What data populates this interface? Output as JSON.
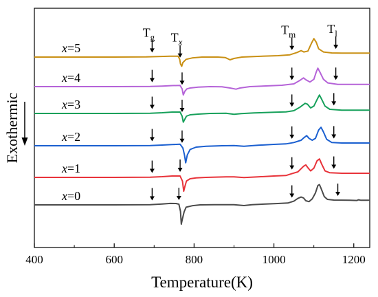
{
  "chart_data": {
    "type": "line",
    "xlabel": "Temperature(K)",
    "ylabel": "Exothermic",
    "xlim": [
      400,
      1240
    ],
    "x_ticks": [
      "400",
      "600",
      "800",
      "1000",
      "1200"
    ],
    "y_ticks_shown": false,
    "grid": false,
    "legend": "none; series labeled inline at left",
    "markers": [
      {
        "symbol": "T",
        "sub": "g",
        "italic_sub": false
      },
      {
        "symbol": "T",
        "sub": "x",
        "italic_sub": true
      },
      {
        "symbol": "T",
        "sub": "m",
        "italic_sub": false
      },
      {
        "symbol": "T",
        "sub": "l",
        "italic_sub": false
      }
    ],
    "series": [
      {
        "label_var": "x",
        "label_val": "=0",
        "color": "#4a4a4a",
        "arrows_at": [
          695,
          762,
          1045,
          1160
        ],
        "points": [
          [
            400,
            0
          ],
          [
            600,
            0
          ],
          [
            690,
            0.5
          ],
          [
            720,
            2
          ],
          [
            740,
            3.2
          ],
          [
            755,
            3
          ],
          [
            762,
            1.5
          ],
          [
            766,
            -14
          ],
          [
            768,
            -42
          ],
          [
            771,
            -30
          ],
          [
            775,
            -15
          ],
          [
            780,
            -5
          ],
          [
            795,
            -2
          ],
          [
            815,
            0
          ],
          [
            850,
            0.5
          ],
          [
            900,
            0.5
          ],
          [
            925,
            -1.5
          ],
          [
            945,
            0.5
          ],
          [
            980,
            2
          ],
          [
            1010,
            3
          ],
          [
            1035,
            4
          ],
          [
            1050,
            8
          ],
          [
            1060,
            14
          ],
          [
            1068,
            17
          ],
          [
            1074,
            15
          ],
          [
            1080,
            9
          ],
          [
            1088,
            7
          ],
          [
            1096,
            13
          ],
          [
            1104,
            26
          ],
          [
            1110,
            42
          ],
          [
            1114,
            44
          ],
          [
            1118,
            36
          ],
          [
            1126,
            18
          ],
          [
            1134,
            12
          ],
          [
            1150,
            10.5
          ],
          [
            1190,
            10
          ],
          [
            1208,
            9.5
          ],
          [
            1212,
            11
          ],
          [
            1218,
            10
          ],
          [
            1240,
            10
          ]
        ]
      },
      {
        "label_var": "x",
        "label_val": "=1",
        "color": "#e8333a",
        "arrows_at": [
          695,
          765,
          1045,
          1150
        ],
        "points": [
          [
            400,
            0
          ],
          [
            600,
            0
          ],
          [
            690,
            0.5
          ],
          [
            720,
            1.5
          ],
          [
            745,
            3
          ],
          [
            765,
            3
          ],
          [
            771,
            -8
          ],
          [
            774,
            -30
          ],
          [
            777,
            -20
          ],
          [
            781,
            -8
          ],
          [
            790,
            -3
          ],
          [
            805,
            -1
          ],
          [
            830,
            0
          ],
          [
            880,
            1
          ],
          [
            900,
            1
          ],
          [
            925,
            -0.5
          ],
          [
            960,
            1
          ],
          [
            1000,
            3
          ],
          [
            1030,
            4
          ],
          [
            1045,
            8
          ],
          [
            1060,
            12
          ],
          [
            1074,
            24
          ],
          [
            1080,
            27
          ],
          [
            1086,
            20
          ],
          [
            1092,
            14
          ],
          [
            1100,
            20
          ],
          [
            1108,
            36
          ],
          [
            1114,
            40
          ],
          [
            1120,
            28
          ],
          [
            1128,
            14
          ],
          [
            1140,
            10
          ],
          [
            1170,
            9
          ],
          [
            1240,
            9
          ]
        ]
      },
      {
        "label_var": "x",
        "label_val": "=2",
        "color": "#1a5fd0",
        "arrows_at": [
          695,
          770,
          1045,
          1150
        ],
        "points": [
          [
            400,
            0
          ],
          [
            600,
            0
          ],
          [
            690,
            0.5
          ],
          [
            720,
            1.5
          ],
          [
            745,
            2.5
          ],
          [
            765,
            3.5
          ],
          [
            772,
            -5
          ],
          [
            776,
            -20
          ],
          [
            779,
            -37
          ],
          [
            783,
            -20
          ],
          [
            790,
            -8
          ],
          [
            805,
            -3
          ],
          [
            830,
            -1
          ],
          [
            870,
            0
          ],
          [
            900,
            0.5
          ],
          [
            925,
            -1
          ],
          [
            960,
            1
          ],
          [
            1000,
            3
          ],
          [
            1030,
            4
          ],
          [
            1050,
            7
          ],
          [
            1068,
            12
          ],
          [
            1076,
            18
          ],
          [
            1082,
            22
          ],
          [
            1088,
            16
          ],
          [
            1096,
            12
          ],
          [
            1104,
            16
          ],
          [
            1112,
            34
          ],
          [
            1118,
            40
          ],
          [
            1124,
            30
          ],
          [
            1132,
            14
          ],
          [
            1145,
            7
          ],
          [
            1170,
            6
          ],
          [
            1240,
            6
          ]
        ]
      },
      {
        "label_var": "x",
        "label_val": "=3",
        "color": "#16a05a",
        "arrows_at": [
          695,
          770,
          1045,
          1150
        ],
        "points": [
          [
            400,
            0
          ],
          [
            600,
            0
          ],
          [
            690,
            0.5
          ],
          [
            720,
            1.5
          ],
          [
            745,
            3
          ],
          [
            765,
            3
          ],
          [
            770,
            -6
          ],
          [
            773,
            -19
          ],
          [
            776,
            -14
          ],
          [
            781,
            -6
          ],
          [
            790,
            -3
          ],
          [
            810,
            -1.5
          ],
          [
            840,
            0
          ],
          [
            880,
            0.5
          ],
          [
            900,
            -2
          ],
          [
            918,
            -0.5
          ],
          [
            950,
            1
          ],
          [
            1000,
            2.5
          ],
          [
            1030,
            3.5
          ],
          [
            1050,
            6
          ],
          [
            1066,
            14
          ],
          [
            1078,
            22
          ],
          [
            1084,
            20
          ],
          [
            1092,
            12
          ],
          [
            1100,
            16
          ],
          [
            1108,
            30
          ],
          [
            1114,
            40
          ],
          [
            1120,
            30
          ],
          [
            1128,
            16
          ],
          [
            1140,
            9
          ],
          [
            1170,
            7
          ],
          [
            1240,
            7
          ]
        ]
      },
      {
        "label_var": "x",
        "label_val": "=4",
        "color": "#b563d8",
        "arrows_at": [
          695,
          770,
          1045,
          1155
        ],
        "points": [
          [
            400,
            0
          ],
          [
            600,
            0
          ],
          [
            690,
            0.5
          ],
          [
            720,
            1.2
          ],
          [
            745,
            2.2
          ],
          [
            765,
            2.5
          ],
          [
            770,
            -5
          ],
          [
            773,
            -18
          ],
          [
            777,
            -10
          ],
          [
            782,
            -5
          ],
          [
            790,
            -3
          ],
          [
            810,
            -1
          ],
          [
            840,
            0
          ],
          [
            870,
            -0.5
          ],
          [
            890,
            -3
          ],
          [
            905,
            -5.5
          ],
          [
            915,
            -3
          ],
          [
            940,
            0
          ],
          [
            980,
            1.5
          ],
          [
            1020,
            3
          ],
          [
            1050,
            6
          ],
          [
            1066,
            14
          ],
          [
            1074,
            19
          ],
          [
            1080,
            15
          ],
          [
            1090,
            10
          ],
          [
            1100,
            16
          ],
          [
            1106,
            32
          ],
          [
            1110,
            40
          ],
          [
            1116,
            30
          ],
          [
            1124,
            16
          ],
          [
            1135,
            8
          ],
          [
            1160,
            5
          ],
          [
            1240,
            5
          ]
        ]
      },
      {
        "label_var": "x",
        "label_val": "=5",
        "color": "#c99014",
        "arrows_at": [
          695,
          765,
          1045,
          1155
        ],
        "points": [
          [
            400,
            0
          ],
          [
            600,
            0
          ],
          [
            680,
            0.5
          ],
          [
            710,
            1.2
          ],
          [
            740,
            2
          ],
          [
            760,
            2
          ],
          [
            764,
            -5
          ],
          [
            766,
            -15
          ],
          [
            769,
            -20
          ],
          [
            772,
            -12
          ],
          [
            780,
            -5
          ],
          [
            795,
            -2
          ],
          [
            820,
            0
          ],
          [
            860,
            0
          ],
          [
            878,
            -1
          ],
          [
            890,
            -6
          ],
          [
            900,
            -3
          ],
          [
            920,
            0
          ],
          [
            960,
            1.5
          ],
          [
            1010,
            3
          ],
          [
            1040,
            5
          ],
          [
            1058,
            10
          ],
          [
            1068,
            14
          ],
          [
            1075,
            11
          ],
          [
            1085,
            13
          ],
          [
            1094,
            30
          ],
          [
            1100,
            40
          ],
          [
            1106,
            32
          ],
          [
            1112,
            18
          ],
          [
            1124,
            11
          ],
          [
            1145,
            9
          ],
          [
            1170,
            8.5
          ],
          [
            1240,
            8.5
          ]
        ]
      }
    ]
  }
}
